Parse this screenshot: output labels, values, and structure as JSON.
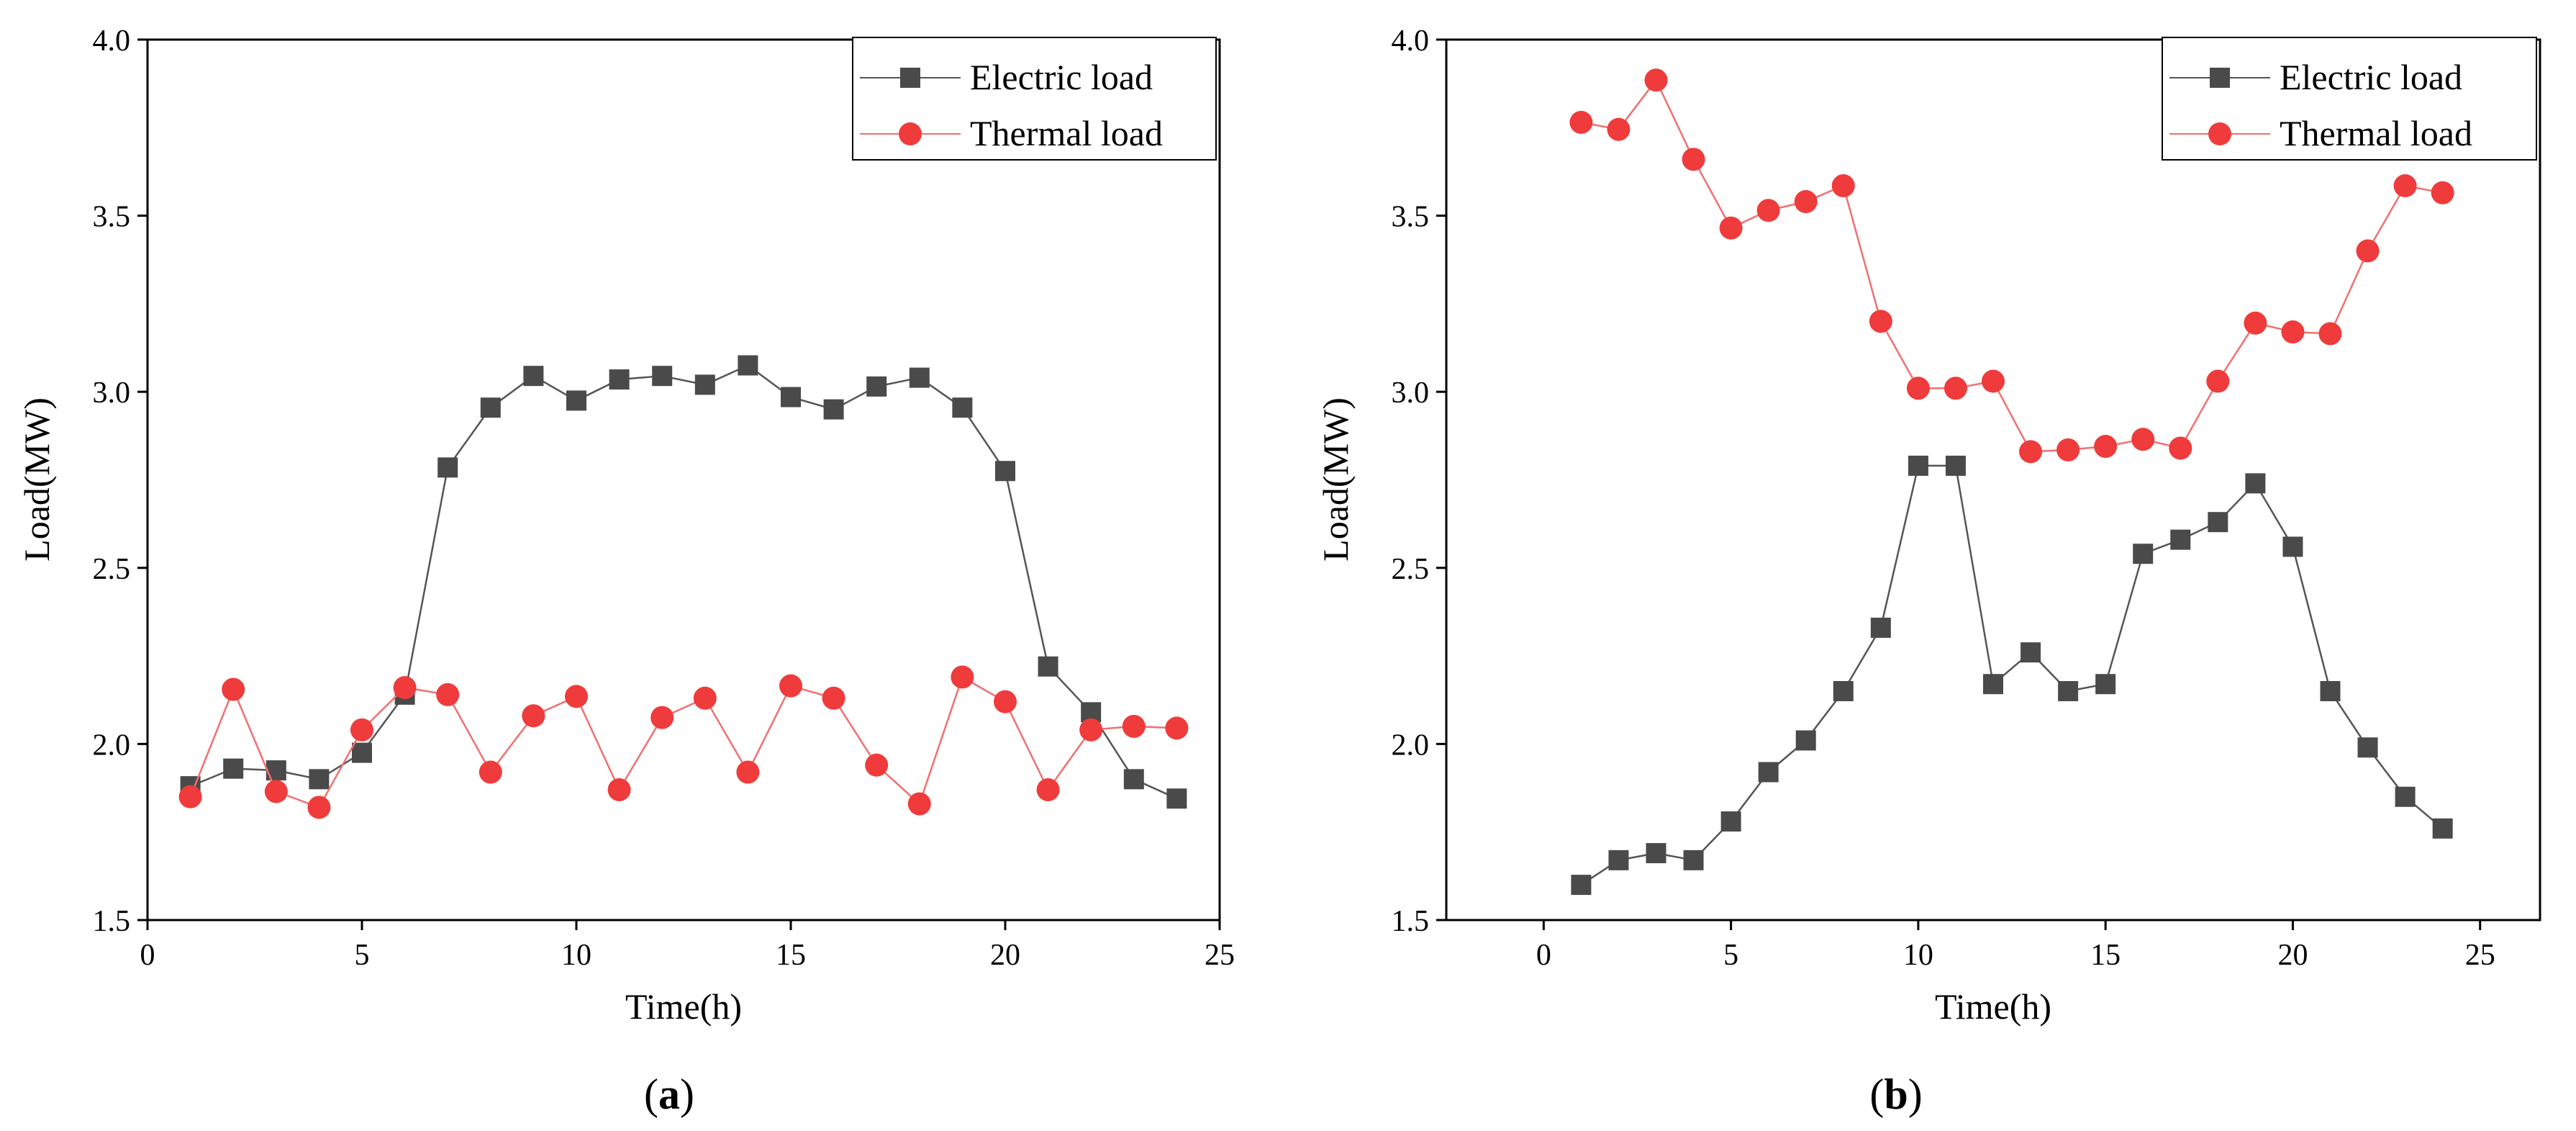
{
  "chart_data": [
    {
      "panel": "a",
      "type": "line",
      "caption": "a",
      "xlabel": "Time(h)",
      "ylabel": "Load(MW)",
      "xlim": [
        0,
        25
      ],
      "ylim": [
        1.5,
        4.0
      ],
      "xticks": [
        0,
        5,
        10,
        15,
        20,
        25
      ],
      "xtick_labels": [
        "0",
        "5",
        "10",
        "15",
        "20",
        "25"
      ],
      "yticks": [
        1.5,
        2.0,
        2.5,
        3.0,
        3.5,
        4.0
      ],
      "ytick_labels": [
        "1.5",
        "2.0",
        "2.5",
        "3.0",
        "3.5",
        "4.0"
      ],
      "legend_position": "top-right",
      "grid": false,
      "x": [
        1,
        2,
        3,
        4,
        5,
        6,
        7,
        8,
        9,
        10,
        11,
        12,
        13,
        14,
        15,
        16,
        17,
        18,
        19,
        20,
        21,
        22,
        23,
        24
      ],
      "series": [
        {
          "name": "Electric load",
          "marker": "square",
          "color": "#4a4a4a",
          "line_color": "#555555",
          "values": [
            1.88,
            1.93,
            1.925,
            1.9,
            1.975,
            2.14,
            2.785,
            2.955,
            3.045,
            2.975,
            3.035,
            3.045,
            3.02,
            3.075,
            2.985,
            2.95,
            3.015,
            3.04,
            2.955,
            2.775,
            2.22,
            2.09,
            1.9,
            1.845
          ]
        },
        {
          "name": "Thermal load",
          "marker": "circle",
          "color": "#ef3b3b",
          "line_color": "#f07070",
          "values": [
            1.85,
            2.155,
            1.865,
            1.82,
            2.04,
            2.16,
            2.14,
            1.92,
            2.08,
            2.135,
            1.87,
            2.075,
            2.13,
            1.92,
            2.165,
            2.13,
            1.94,
            1.83,
            2.19,
            2.12,
            1.87,
            2.04,
            2.05,
            2.045
          ]
        }
      ]
    },
    {
      "panel": "b",
      "type": "line",
      "caption": "b",
      "xlabel": "Time(h)",
      "ylabel": "Load(MW)",
      "xlim": [
        -2.6,
        26.6
      ],
      "ylim": [
        1.5,
        4.0
      ],
      "xticks": [
        0,
        5,
        10,
        15,
        20,
        25
      ],
      "xtick_labels": [
        "0",
        "5",
        "10",
        "15",
        "20",
        "25"
      ],
      "yticks": [
        1.5,
        2.0,
        2.5,
        3.0,
        3.5,
        4.0
      ],
      "ytick_labels": [
        "1.5",
        "2.0",
        "2.5",
        "3.0",
        "3.5",
        "4.0"
      ],
      "legend_position": "top-right",
      "grid": false,
      "x": [
        1,
        2,
        3,
        4,
        5,
        6,
        7,
        8,
        9,
        10,
        11,
        12,
        13,
        14,
        15,
        16,
        17,
        18,
        19,
        20,
        21,
        22,
        23,
        24
      ],
      "series": [
        {
          "name": "Electric load",
          "marker": "square",
          "color": "#4a4a4a",
          "line_color": "#555555",
          "values": [
            1.6,
            1.67,
            1.69,
            1.67,
            1.78,
            1.92,
            2.01,
            2.15,
            2.33,
            2.79,
            2.79,
            2.17,
            2.26,
            2.15,
            2.17,
            2.54,
            2.58,
            2.63,
            2.74,
            2.56,
            2.15,
            1.99,
            1.85,
            1.76
          ]
        },
        {
          "name": "Thermal load",
          "marker": "circle",
          "color": "#ef3b3b",
          "line_color": "#f07070",
          "values": [
            3.765,
            3.745,
            3.885,
            3.66,
            3.465,
            3.515,
            3.54,
            3.585,
            3.2,
            3.01,
            3.01,
            3.03,
            2.83,
            2.835,
            2.845,
            2.865,
            2.84,
            3.03,
            3.195,
            3.17,
            3.165,
            3.4,
            3.585,
            3.565
          ]
        }
      ]
    }
  ]
}
